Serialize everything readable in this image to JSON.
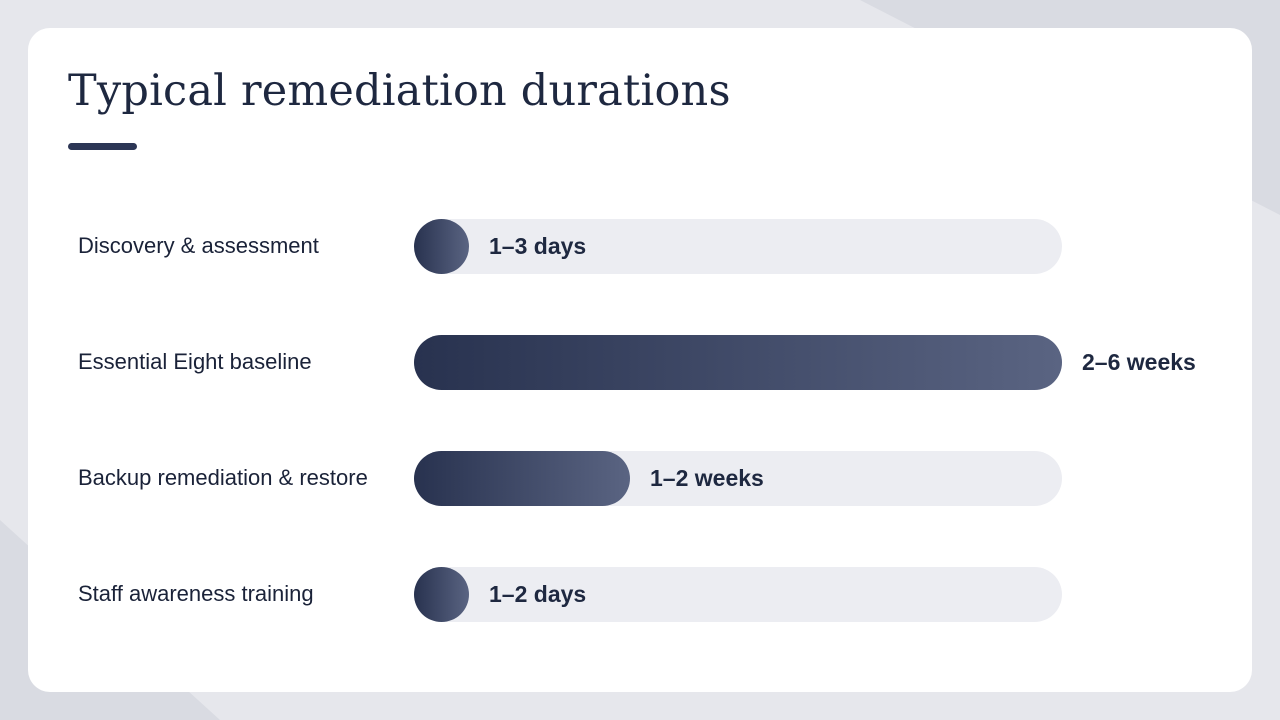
{
  "chart_data": {
    "type": "bar",
    "title": "Typical remediation durations",
    "xlabel": "",
    "ylabel": "",
    "unit": "weeks",
    "xlim": [
      0,
      6
    ],
    "categories": [
      "Discovery & assessment",
      "Essential Eight baseline",
      "Backup remediation & restore",
      "Staff awareness training"
    ],
    "values": [
      0.4,
      6,
      2,
      0.3
    ],
    "value_labels": [
      "1–3 days",
      "2–6 weeks",
      "1–2 weeks",
      "1–2 days"
    ]
  },
  "colors": {
    "bar_start": "#28324f",
    "bar_end": "#5a6482",
    "track": "#ecedf2",
    "text": "#1e2840"
  }
}
